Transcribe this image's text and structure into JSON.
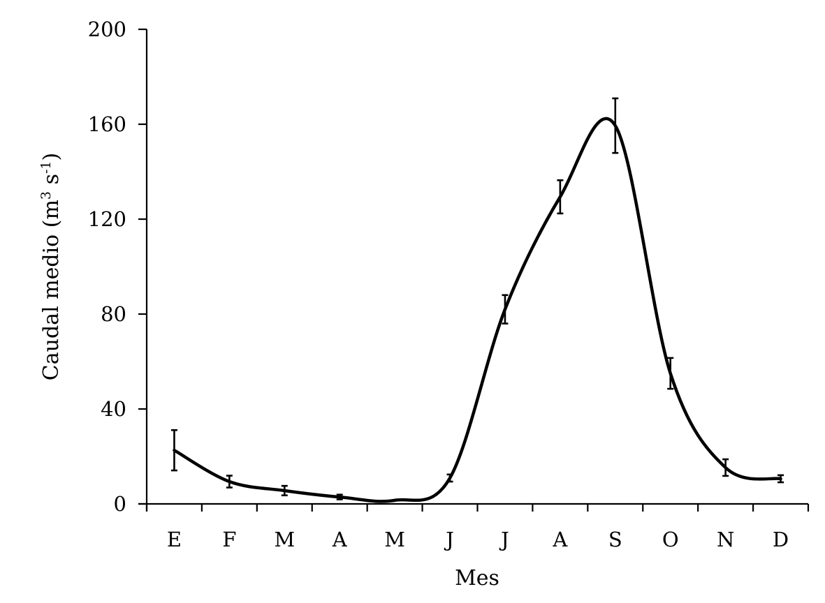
{
  "chart_data": {
    "type": "line",
    "title": "",
    "xlabel": "Mes",
    "ylabel": "Caudal medio (m3 s-1)",
    "ylabel_parts": {
      "main": "Caudal medio (m",
      "sup1": "3",
      "mid": " s",
      "sup2": "-1",
      "end": ")"
    },
    "categories": [
      "E",
      "F",
      "M",
      "A",
      "M",
      "J",
      "J",
      "A",
      "S",
      "O",
      "N",
      "D"
    ],
    "series": [
      {
        "name": "Caudal medio",
        "values": [
          22.6,
          9.4,
          5.6,
          2.9,
          1.5,
          10.9,
          82,
          129.4,
          159.4,
          55,
          15.3,
          10.6
        ],
        "error": [
          8.5,
          2.5,
          2,
          1,
          0,
          1.5,
          6,
          7,
          11.5,
          6.5,
          3.5,
          1.5
        ],
        "color": "#000000",
        "smooth": true
      }
    ],
    "yticks": [
      0,
      40,
      80,
      120,
      160,
      200
    ],
    "ylim": [
      0,
      200
    ],
    "grid": false,
    "legend": "none"
  }
}
